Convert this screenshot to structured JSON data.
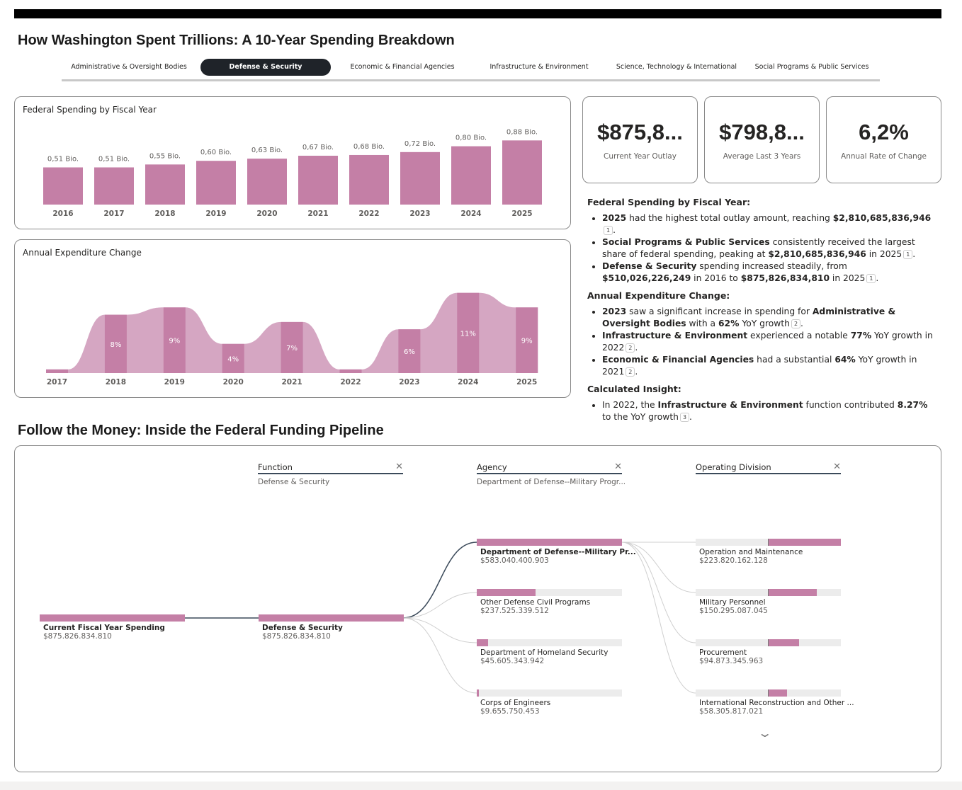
{
  "title": "How Washington Spent Trillions: A 10-Year Spending Breakdown",
  "tabs": [
    {
      "label": "Administrative & Oversight Bodies",
      "active": false
    },
    {
      "label": "Defense & Security",
      "active": true
    },
    {
      "label": "Economic & Financial Agencies",
      "active": false
    },
    {
      "label": "Infrastructure & Environment",
      "active": false
    },
    {
      "label": "Science, Technology & International",
      "active": false
    },
    {
      "label": "Social Programs & Public Services",
      "active": false
    }
  ],
  "colors": {
    "bar": "#c47fa6",
    "area": "#d5a6c2",
    "track": "#ececec",
    "active_tab": "#1f2329"
  },
  "chart_data": [
    {
      "type": "bar",
      "title": "Federal Spending by Fiscal Year",
      "categories": [
        "2016",
        "2017",
        "2018",
        "2019",
        "2020",
        "2021",
        "2022",
        "2023",
        "2024",
        "2025"
      ],
      "values": [
        0.51,
        0.51,
        0.55,
        0.6,
        0.63,
        0.67,
        0.68,
        0.72,
        0.8,
        0.88
      ],
      "labels": [
        "0,51 Bio.",
        "0,51 Bio.",
        "0,55 Bio.",
        "0,60 Bio.",
        "0,63 Bio.",
        "0,67 Bio.",
        "0,68 Bio.",
        "0,72 Bio.",
        "0,80 Bio.",
        "0,88 Bio."
      ],
      "ylim": [
        0,
        1
      ]
    },
    {
      "type": "area",
      "title": "Annual Expenditure Change",
      "categories": [
        "2017",
        "2018",
        "2019",
        "2020",
        "2021",
        "2022",
        "2023",
        "2024",
        "2025"
      ],
      "values": [
        0.5,
        8,
        9,
        4,
        7,
        0.5,
        6,
        11,
        9
      ],
      "labels": [
        null,
        "8%",
        "9%",
        "4%",
        "7%",
        null,
        "6%",
        "11%",
        "9%"
      ],
      "ylim": [
        0,
        12
      ]
    }
  ],
  "kpis": [
    {
      "value": "$875,8...",
      "label": "Current Year Outlay"
    },
    {
      "value": "$798,8...",
      "label": "Average Last 3 Years"
    },
    {
      "value": "6,2%",
      "label": "Annual Rate of Change"
    }
  ],
  "insights": {
    "s1": {
      "heading": "Federal Spending by Fiscal Year:",
      "b1": {
        "a": "2025",
        "b": " had the highest total outlay amount, reaching ",
        "c": "$2,810,685,836,946",
        "r": "1"
      },
      "b2": {
        "a": "Social Programs & Public Services",
        "b": " consistently received the largest share of federal spending, peaking at ",
        "c": "$2,810,685,836,946",
        "d": " in 2025",
        "r": "1"
      },
      "b3": {
        "a": "Defense & Security",
        "b": " spending increased steadily, from ",
        "c": "$510,026,226,249",
        "d": " in 2016 to ",
        "e": "$875,826,834,810",
        "f": " in 2025",
        "r": "1"
      }
    },
    "s2": {
      "heading": "Annual Expenditure Change:",
      "b1": {
        "a": "2023",
        "b": " saw a significant increase in spending for ",
        "c": "Administrative & Oversight Bodies",
        "d": " with a ",
        "e": "62%",
        "f": " YoY growth",
        "r": "2"
      },
      "b2": {
        "a": "Infrastructure & Environment",
        "b": " experienced a notable ",
        "c": "77%",
        "d": " YoY growth in 2022",
        "r": "2"
      },
      "b3": {
        "a": "Economic & Financial Agencies",
        "b": " had a substantial ",
        "c": "64%",
        "d": " YoY growth in 2021",
        "r": "2"
      }
    },
    "s3": {
      "heading": "Calculated Insight:",
      "b1": {
        "a": "In 2022, the ",
        "b": "Infrastructure & Environment",
        "c": " function contributed ",
        "d": "8.27%",
        "e": " to the YoY growth",
        "r": "3"
      }
    }
  },
  "pipeline": {
    "title": "Follow the Money: Inside the Federal Funding Pipeline",
    "columns": [
      {
        "header": "Function",
        "selected": "Defense & Security"
      },
      {
        "header": "Agency",
        "selected": "Department of Defense--Military Progr..."
      },
      {
        "header": "Operating Division",
        "selected": ""
      }
    ],
    "root": {
      "label": "Current Fiscal Year Spending",
      "value": "$875.826.834.810",
      "fraction": 1
    },
    "function": {
      "label": "Defense & Security",
      "value": "$875.826.834.810",
      "fraction": 1
    },
    "agencies": [
      {
        "label": "Department of Defense--Military Pr...",
        "value": "$583.040.400.903",
        "fraction": 1,
        "selected": true
      },
      {
        "label": "Other Defense Civil Programs",
        "value": "$237.525.339.512",
        "fraction": 0.407
      },
      {
        "label": "Department of Homeland Security",
        "value": "$45.605.343.942",
        "fraction": 0.078
      },
      {
        "label": "Corps of Engineers",
        "value": "$9.655.750.453",
        "fraction": 0.017
      }
    ],
    "divisions": [
      {
        "label": "Operation and Maintenance",
        "value": "$223.820.162.128",
        "fraction": 1
      },
      {
        "label": "Military Personnel",
        "value": "$150.295.087.045",
        "fraction": 0.671
      },
      {
        "label": "Procurement",
        "value": "$94.873.345.963",
        "fraction": 0.424
      },
      {
        "label": "International Reconstruction and Other ...",
        "value": "$58.305.817.021",
        "fraction": 0.26
      }
    ]
  }
}
